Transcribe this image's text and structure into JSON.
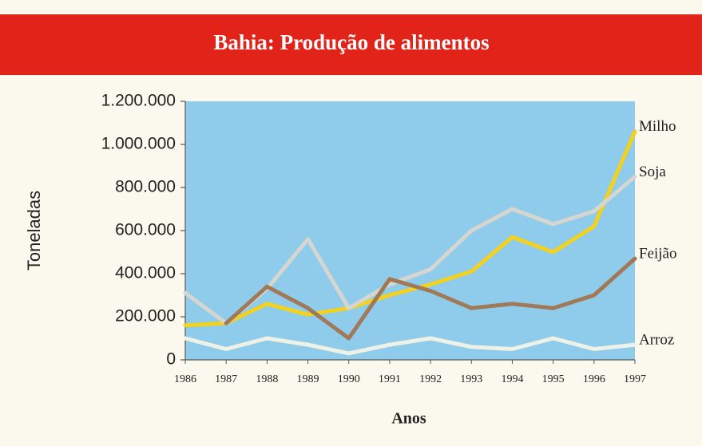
{
  "chart_data": {
    "type": "line",
    "title": "Bahia: Produção de alimentos",
    "x_label": "Anos",
    "y_label": "Toneladas",
    "x": [
      1986,
      1987,
      1988,
      1989,
      1990,
      1991,
      1992,
      1993,
      1994,
      1995,
      1996,
      1997
    ],
    "xlim": [
      1986,
      1997
    ],
    "xticks": [
      1986,
      1987,
      1988,
      1989,
      1990,
      1991,
      1992,
      1993,
      1994,
      1995,
      1996,
      1997
    ],
    "ylim": [
      0,
      1200000
    ],
    "yticks": [
      0,
      {
        "value": 200000,
        "label": "200.000"
      },
      {
        "value": 400000,
        "label": "400.000"
      },
      {
        "value": 600000,
        "label": "600.000"
      },
      {
        "value": 800000,
        "label": "800.000"
      },
      {
        "value": 1000000,
        "label": "1.000.000"
      },
      {
        "value": 1200000,
        "label": "1.200.000"
      }
    ],
    "series": [
      {
        "name": "Milho",
        "color": "#f2d21e",
        "values": [
          160000,
          170000,
          260000,
          210000,
          240000,
          300000,
          350000,
          410000,
          570000,
          500000,
          620000,
          1060000
        ]
      },
      {
        "name": "Soja",
        "color": "#d6d6d0",
        "values": [
          310000,
          170000,
          330000,
          560000,
          240000,
          350000,
          420000,
          600000,
          700000,
          630000,
          690000,
          850000
        ]
      },
      {
        "name": "Feijão",
        "color": "#a07a58",
        "values": [
          null,
          170000,
          340000,
          240000,
          100000,
          375000,
          320000,
          240000,
          260000,
          240000,
          300000,
          470000
        ]
      },
      {
        "name": "Arroz",
        "color": "#eef2e6",
        "values": [
          100000,
          50000,
          100000,
          70000,
          30000,
          70000,
          100000,
          60000,
          50000,
          100000,
          50000,
          70000
        ]
      }
    ]
  }
}
